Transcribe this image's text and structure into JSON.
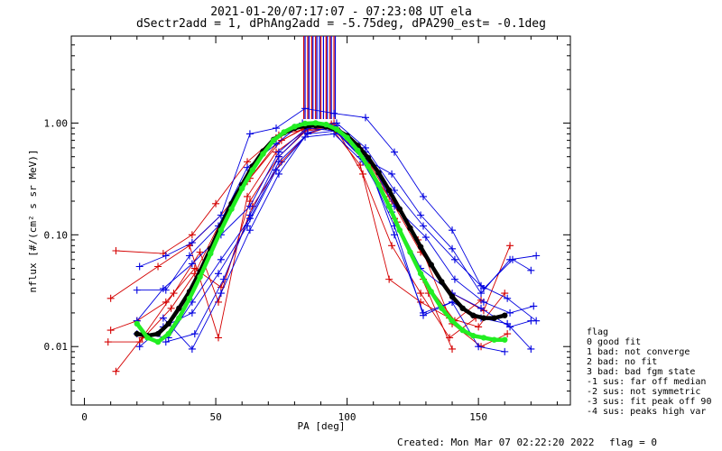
{
  "chart_data": {
    "type": "line",
    "title": "2021-01-20/07:17:07 - 07:23:08 UT ela",
    "subtitle": "dSectr2add = 1, dPhAng2add = -5.75deg, dPA290_est=  -0.1deg",
    "xlabel": "PA [deg]",
    "ylabel": "nflux [#/(cm² s sr MeV)]",
    "xlim": [
      -5,
      185
    ],
    "ylim": [
      0.003,
      6
    ],
    "yscale": "log",
    "x_ticks": [
      0,
      50,
      100,
      150
    ],
    "x_tick_labels": [
      "0",
      "50",
      "100",
      "150"
    ],
    "y_ticks": [
      0.01,
      0.1,
      1.0
    ],
    "y_tick_labels": [
      "0.01",
      "0.10",
      "1.00"
    ],
    "grid": false,
    "legend_position": "right",
    "colors": {
      "red": "#d40000",
      "blue": "#0000e0",
      "black": "#000000",
      "green": "#22ee22"
    },
    "series": [
      {
        "color": "red",
        "x": [
          12,
          30,
          41,
          50,
          62,
          74,
          84,
          93,
          103,
          117,
          128,
          140,
          152,
          162
        ],
        "y": [
          0.072,
          0.068,
          0.1,
          0.19,
          0.45,
          0.78,
          0.88,
          0.92,
          0.6,
          0.2,
          0.07,
          0.03,
          0.021,
          0.08
        ]
      },
      {
        "color": "red",
        "x": [
          10,
          28,
          40,
          52,
          63,
          75,
          86,
          95,
          106,
          118,
          129,
          141,
          151
        ],
        "y": [
          0.027,
          0.052,
          0.08,
          0.15,
          0.32,
          0.7,
          0.95,
          1.0,
          0.55,
          0.14,
          0.04,
          0.017,
          0.026
        ]
      },
      {
        "color": "red",
        "x": [
          9,
          21,
          33,
          42,
          51,
          62,
          73,
          84,
          94,
          105,
          116,
          127,
          140,
          151,
          161
        ],
        "y": [
          0.011,
          0.011,
          0.022,
          0.045,
          0.12,
          0.3,
          0.65,
          0.92,
          0.98,
          0.6,
          0.22,
          0.09,
          0.016,
          0.01,
          0.013
        ]
      },
      {
        "color": "red",
        "x": [
          12,
          22,
          34,
          44,
          51,
          63,
          74,
          85,
          96,
          108,
          119,
          131,
          140
        ],
        "y": [
          0.006,
          0.012,
          0.03,
          0.07,
          0.025,
          0.2,
          0.5,
          0.88,
          0.9,
          0.45,
          0.13,
          0.03,
          0.0095
        ]
      },
      {
        "color": "red",
        "x": [
          10,
          20,
          31,
          42,
          52,
          64,
          75,
          85,
          95,
          106,
          117,
          128,
          139,
          149
        ],
        "y": [
          0.014,
          0.017,
          0.025,
          0.05,
          0.034,
          0.18,
          0.45,
          0.8,
          0.95,
          0.35,
          0.08,
          0.03,
          0.012,
          0.018
        ]
      },
      {
        "color": "red",
        "x": [
          40,
          51,
          62,
          73,
          84,
          94,
          105,
          116,
          128,
          139,
          150,
          160
        ],
        "y": [
          0.08,
          0.012,
          0.22,
          0.55,
          0.85,
          0.9,
          0.42,
          0.04,
          0.025,
          0.018,
          0.015,
          0.03
        ]
      },
      {
        "color": "blue",
        "x": [
          21,
          31,
          41,
          52,
          63,
          73,
          84,
          95,
          107,
          118,
          129,
          140,
          151,
          161,
          172
        ],
        "y": [
          0.052,
          0.065,
          0.085,
          0.15,
          0.8,
          0.9,
          1.35,
          1.22,
          1.12,
          0.55,
          0.22,
          0.11,
          0.035,
          0.027,
          0.017
        ]
      },
      {
        "color": "blue",
        "x": [
          20,
          31,
          40,
          51,
          62,
          73,
          83,
          94,
          105,
          117,
          128,
          140,
          151,
          162,
          172
        ],
        "y": [
          0.032,
          0.032,
          0.065,
          0.12,
          0.4,
          0.65,
          1.0,
          0.92,
          0.5,
          0.35,
          0.15,
          0.075,
          0.03,
          0.06,
          0.065
        ]
      },
      {
        "color": "blue",
        "x": [
          20,
          30,
          41,
          52,
          63,
          74,
          85,
          96,
          107,
          118,
          129,
          141,
          152,
          163,
          170
        ],
        "y": [
          0.017,
          0.033,
          0.055,
          0.1,
          0.18,
          0.55,
          0.92,
          1.0,
          0.6,
          0.25,
          0.12,
          0.06,
          0.033,
          0.06,
          0.048
        ]
      },
      {
        "color": "blue",
        "x": [
          20,
          32,
          41,
          52,
          63,
          74,
          85,
          96,
          107,
          118,
          130,
          141,
          152,
          162,
          171
        ],
        "y": [
          0.013,
          0.012,
          0.025,
          0.06,
          0.14,
          0.45,
          0.8,
          0.85,
          0.55,
          0.18,
          0.095,
          0.04,
          0.025,
          0.02,
          0.023
        ]
      },
      {
        "color": "blue",
        "x": [
          21,
          30,
          41,
          51,
          62,
          73,
          84,
          95,
          106,
          117,
          128,
          140,
          151,
          162,
          170
        ],
        "y": [
          0.01,
          0.015,
          0.02,
          0.045,
          0.12,
          0.38,
          0.75,
          0.8,
          0.45,
          0.16,
          0.05,
          0.03,
          0.022,
          0.015,
          0.017
        ]
      },
      {
        "color": "blue",
        "x": [
          30,
          41,
          52,
          63,
          74,
          85,
          96,
          107,
          118,
          129,
          140,
          151,
          161,
          170
        ],
        "y": [
          0.018,
          0.0095,
          0.03,
          0.11,
          0.35,
          0.82,
          0.95,
          0.5,
          0.1,
          0.02,
          0.025,
          0.018,
          0.016,
          0.0095
        ]
      },
      {
        "color": "blue",
        "x": [
          31,
          42,
          53,
          63,
          74,
          85,
          96,
          107,
          118,
          129,
          140,
          150,
          160
        ],
        "y": [
          0.011,
          0.013,
          0.04,
          0.15,
          0.5,
          0.9,
          0.85,
          0.45,
          0.12,
          0.019,
          0.025,
          0.01,
          0.009
        ]
      },
      {
        "color": "black",
        "x": [
          20,
          24,
          28,
          32,
          36,
          40,
          44,
          48,
          52,
          56,
          60,
          64,
          68,
          72,
          76,
          80,
          84,
          88,
          92,
          96,
          100,
          104,
          108,
          112,
          116,
          120,
          124,
          128,
          132,
          136,
          140,
          144,
          148,
          152,
          156,
          160
        ],
        "y": [
          0.013,
          0.0125,
          0.013,
          0.016,
          0.022,
          0.031,
          0.047,
          0.075,
          0.12,
          0.19,
          0.28,
          0.41,
          0.56,
          0.71,
          0.82,
          0.9,
          0.94,
          0.95,
          0.93,
          0.87,
          0.77,
          0.63,
          0.49,
          0.36,
          0.25,
          0.17,
          0.115,
          0.078,
          0.054,
          0.038,
          0.028,
          0.022,
          0.019,
          0.018,
          0.018,
          0.019
        ]
      },
      {
        "color": "green",
        "x": [
          20,
          24,
          28,
          32,
          36,
          40,
          44,
          48,
          52,
          56,
          60,
          64,
          68,
          72,
          76,
          80,
          84,
          88,
          92,
          96,
          100,
          104,
          108,
          112,
          116,
          120,
          124,
          128,
          132,
          136,
          140,
          144,
          148,
          152,
          156,
          160
        ],
        "y": [
          0.016,
          0.012,
          0.011,
          0.013,
          0.018,
          0.027,
          0.042,
          0.068,
          0.11,
          0.17,
          0.26,
          0.38,
          0.53,
          0.7,
          0.83,
          0.93,
          0.99,
          1.0,
          0.97,
          0.88,
          0.74,
          0.57,
          0.41,
          0.28,
          0.18,
          0.11,
          0.07,
          0.045,
          0.031,
          0.022,
          0.017,
          0.014,
          0.0125,
          0.012,
          0.0115,
          0.0115
        ]
      }
    ],
    "peak_markers": [
      {
        "color": "red",
        "x": [
          83.5,
          85,
          86.5,
          88,
          90,
          92,
          93.5,
          95
        ]
      },
      {
        "color": "blue",
        "x": [
          84,
          85.5,
          87,
          88.5,
          89.5,
          91,
          92.5,
          94,
          95.5
        ]
      }
    ],
    "legend": {
      "title": "flag",
      "entries": [
        " 0 good fit",
        " 1 bad: not converge",
        " 2 bad: no fit",
        " 3 bad: bad fgm state",
        "-1 sus: far off median",
        "-2 sus: not symmetric",
        "-3 sus: fit peak off 90",
        "-4 sus: peaks high var"
      ]
    },
    "footer": {
      "created": "Created: Mon Mar 07 02:22:20 2022",
      "flag": "flag = 0"
    }
  }
}
